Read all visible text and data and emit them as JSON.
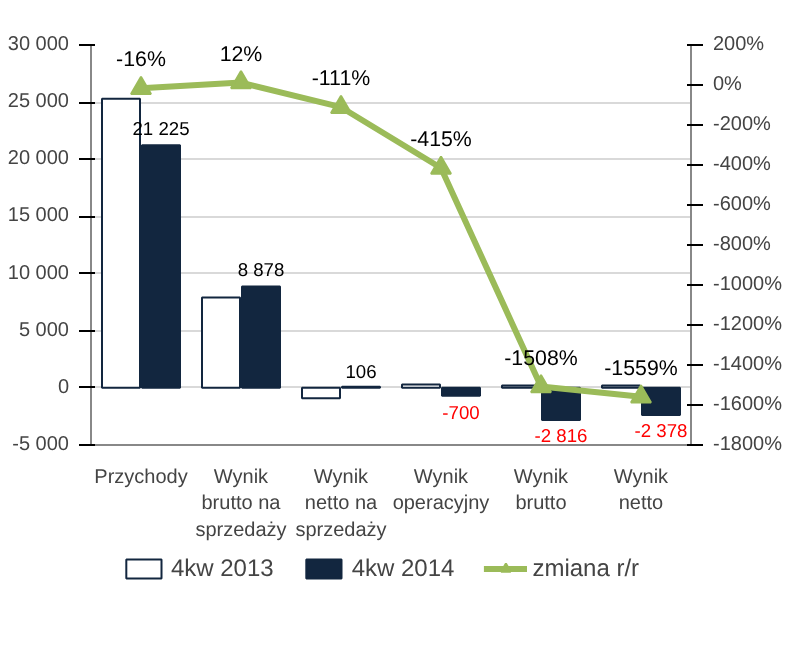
{
  "chart_data": {
    "type": "bar",
    "categories": [
      "Przychody",
      "Wynik brutto na sprzedaży",
      "Wynik netto na sprzedaży",
      "Wynik operacyjny",
      "Wynik brutto",
      "Wynik netto"
    ],
    "series": [
      {
        "name": "4kw 2013",
        "color": "#ffffff",
        "values": [
          25300,
          7900,
          -900,
          300,
          200,
          200
        ]
      },
      {
        "name": "4kw 2014",
        "color": "#12263f",
        "values": [
          21225,
          8878,
          106,
          -700,
          -2816,
          -2378
        ],
        "value_labels": [
          "21 225",
          "8 878",
          "106",
          "-700",
          "-2 816",
          "-2 378"
        ]
      },
      {
        "name": "zmiana r/r",
        "type": "line",
        "axis": "y2",
        "color": "#9bbb59",
        "marker": "triangle",
        "values": [
          -16,
          12,
          -111,
          -415,
          -1508,
          -1559
        ],
        "value_labels": [
          "-16%",
          "12%",
          "-111%",
          "-415%",
          "-1508%",
          "-1559%"
        ]
      }
    ],
    "ylim": [
      -5000,
      30000
    ],
    "yticks": [
      {
        "value": -5000,
        "label": "-5 000"
      },
      0,
      {
        "value": 5000,
        "label": "5 000"
      },
      {
        "value": 10000,
        "label": "10 000"
      },
      {
        "value": 15000,
        "label": "15 000"
      },
      {
        "value": 20000,
        "label": "20 000"
      },
      {
        "value": 25000,
        "label": "25 000"
      },
      {
        "value": 30000,
        "label": "30 000"
      }
    ],
    "y2lim": [
      -1800,
      200
    ],
    "y2ticks": [
      {
        "value": 200,
        "label": "200%"
      },
      {
        "value": 0,
        "label": "0%"
      },
      {
        "value": -200,
        "label": "-200%"
      },
      {
        "value": -400,
        "label": "-400%"
      },
      {
        "value": -600,
        "label": "-600%"
      },
      {
        "value": -800,
        "label": "-800%"
      },
      {
        "value": -1000,
        "label": "-1000%"
      },
      {
        "value": -1200,
        "label": "-1200%"
      },
      {
        "value": -1400,
        "label": "-1400%"
      },
      {
        "value": -1600,
        "label": "-1600%"
      },
      {
        "value": -1800,
        "label": "-1800%"
      }
    ],
    "grid": "y",
    "legend": "bottom"
  }
}
